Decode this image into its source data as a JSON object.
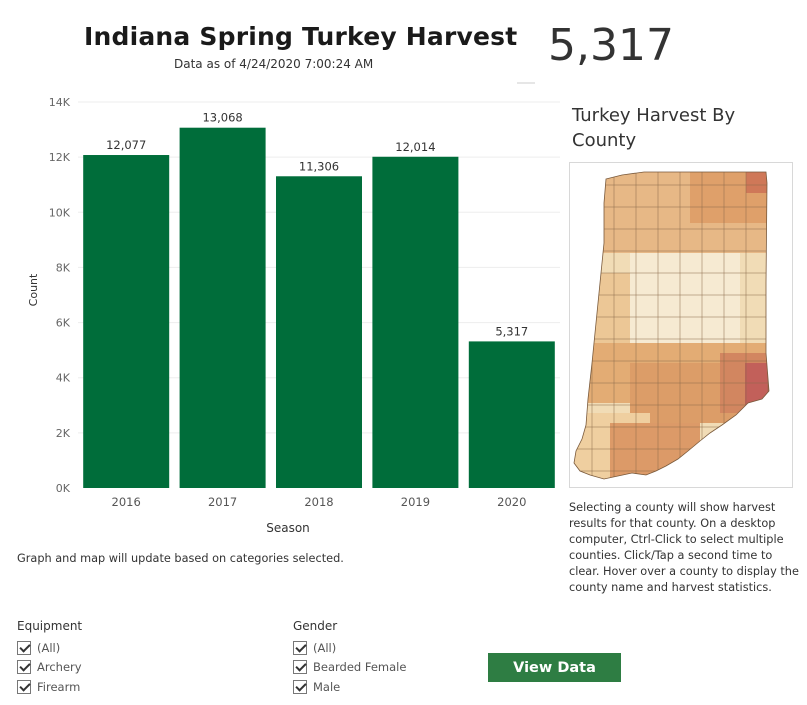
{
  "header": {
    "title": "Indiana Spring Turkey Harvest",
    "subtitle": "Data as of 4/24/2020 7:00:24 AM",
    "big_number": "5,317"
  },
  "chart_data": {
    "type": "bar",
    "categories": [
      "2016",
      "2017",
      "2018",
      "2019",
      "2020"
    ],
    "values": [
      12077,
      13068,
      11306,
      12014,
      5317
    ],
    "value_labels": [
      "12,077",
      "13,068",
      "11,306",
      "12,014",
      "5,317"
    ],
    "xlabel": "Season",
    "ylabel": "Count",
    "ylim": [
      0,
      14000
    ],
    "yticks": [
      0,
      2000,
      4000,
      6000,
      8000,
      10000,
      12000,
      14000
    ],
    "ytick_labels": [
      "0K",
      "2K",
      "4K",
      "6K",
      "8K",
      "10K",
      "12K",
      "14K"
    ],
    "bar_color": "#006d3a",
    "grid": true
  },
  "map": {
    "title": "Turkey Harvest By County",
    "description": "Selecting a county will show harvest results for that county. On a desktop computer, Ctrl-Click to select multiple counties. Click/Tap a second time to clear. Hover over a county to display the county name and harvest statistics."
  },
  "graph_note": "Graph and map will update based on categories selected.",
  "filters": {
    "equipment": {
      "title": "Equipment",
      "options": [
        "(All)",
        "Archery",
        "Firearm"
      ]
    },
    "gender": {
      "title": "Gender",
      "options": [
        "(All)",
        "Bearded Female",
        "Male"
      ]
    }
  },
  "actions": {
    "view_data": "View Data"
  },
  "colors": {
    "bar": "#006d3a",
    "button": "#2e7d43",
    "map_light": "#f3e4c6",
    "map_mid": "#e3aa72",
    "map_dark": "#c4605a"
  }
}
